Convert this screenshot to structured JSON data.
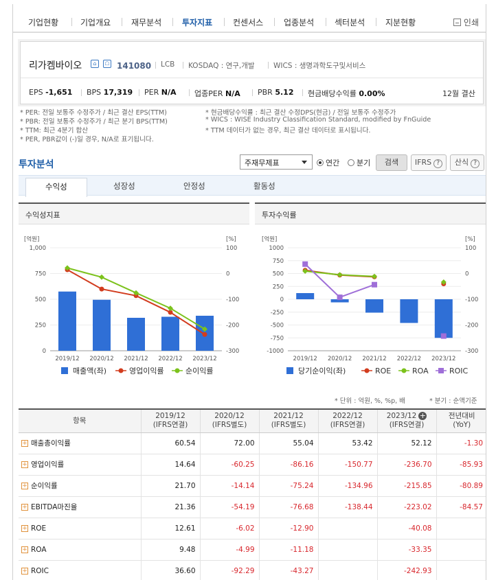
{
  "nav": {
    "tabs": [
      "기업현황",
      "기업개요",
      "재무분석",
      "투자지표",
      "컨센서스",
      "업종분석",
      "섹터분석",
      "지분현황"
    ],
    "active_index": 3,
    "print_label": "인쇄"
  },
  "company": {
    "name": "리가켐바이오",
    "code": "141080",
    "lcb": "LCB",
    "market": "KOSDAQ : 연구,개발",
    "wics": "WICS : 생명과학도구및서비스",
    "stats": {
      "eps_label": "EPS",
      "eps_value": "-1,651",
      "bps_label": "BPS",
      "bps_value": "17,319",
      "per_label": "PER",
      "per_value": "N/A",
      "iper_label": "업종PER",
      "iper_value": "N/A",
      "pbr_label": "PBR",
      "pbr_value": "5.12",
      "div_label": "현금배당수익률",
      "div_value": "0.00%",
      "settle": "12월 결산"
    }
  },
  "notes": {
    "left": [
      "* PER: 전일 보통주 수정주가 / 최근 결산 EPS(TTM)",
      "* PBR: 전일 보통주 수정주가 / 최근 분기 BPS(TTM)",
      "* TTM: 최근 4분기 합산",
      "* PER, PBR값이 (-)일 경우, N/A로 표기됩니다."
    ],
    "right": [
      "* 현금배당수익률 : 최근 결산 수정DPS(현금) / 전일 보통주 수정주가",
      "* WICS : WISE Industry Classification Standard, modified by FnGuide",
      "* TTM 데이터가 없는 경우, 최근 결산 데이터로 표시됩니다."
    ]
  },
  "analysis": {
    "title": "투자분석",
    "select_value": "주재무제표",
    "radio_annual": "연간",
    "radio_quarter": "분기",
    "search_label": "검색",
    "ifrs_label": "IFRS",
    "calc_label": "산식",
    "subtabs": [
      "수익성",
      "성장성",
      "안정성",
      "활동성"
    ],
    "active_subtab": 0
  },
  "chart_data": [
    {
      "title": "수익성지표",
      "type": "bar+line",
      "categories": [
        "2019/12",
        "2020/12",
        "2021/12",
        "2022/12",
        "2023/12"
      ],
      "y_left": {
        "unit": "[억원]",
        "ticks": [
          "0",
          "250",
          "500",
          "750",
          "1,000"
        ],
        "range": [
          0,
          1000
        ]
      },
      "y_right": {
        "unit": "[%]",
        "ticks": [
          "-300",
          "-200",
          "-100",
          "0",
          "100"
        ],
        "range": [
          -300,
          100
        ]
      },
      "series": [
        {
          "name": "매출액(좌)",
          "kind": "bar",
          "axis": "left",
          "color": "#2f6fd6",
          "values": [
            575,
            495,
            320,
            330,
            340
          ]
        },
        {
          "name": "영업이익률",
          "kind": "line",
          "axis": "right",
          "color": "#d23c1e",
          "values": [
            14.64,
            -60.25,
            -86.16,
            -150.77,
            -236.7
          ]
        },
        {
          "name": "순이익률",
          "kind": "line",
          "axis": "right",
          "color": "#7cc21c",
          "values": [
            21.7,
            -14.14,
            -75.24,
            -134.96,
            -215.85
          ]
        }
      ]
    },
    {
      "title": "투자수익률",
      "type": "bar+line",
      "categories": [
        "2019/12",
        "2020/12",
        "2021/12",
        "2022/12",
        "2023/12"
      ],
      "y_left": {
        "unit": "[억원]",
        "ticks": [
          "-1000",
          "-750",
          "-500",
          "-250",
          "0",
          "250",
          "500",
          "750",
          "1000"
        ],
        "range": [
          -1000,
          1000
        ]
      },
      "y_right": {
        "unit": "[%]",
        "ticks": [
          "-300",
          "-200",
          "-100",
          "0",
          "100"
        ],
        "range": [
          -300,
          100
        ]
      },
      "series": [
        {
          "name": "당기순이익(좌)",
          "kind": "bar",
          "axis": "left",
          "color": "#2f6fd6",
          "values": [
            120,
            -60,
            -260,
            -460,
            -750
          ]
        },
        {
          "name": "ROE",
          "kind": "line",
          "axis": "right",
          "color": "#d23c1e",
          "values": [
            12.61,
            -6.02,
            -12.9,
            null,
            -40.08
          ]
        },
        {
          "name": "ROA",
          "kind": "line",
          "axis": "right",
          "color": "#7cc21c",
          "values": [
            9.48,
            -4.99,
            -11.18,
            null,
            -33.35
          ]
        },
        {
          "name": "ROIC",
          "kind": "line",
          "axis": "right",
          "color": "#9f6fd8",
          "values": [
            36.6,
            -92.29,
            -43.27,
            null,
            -242.93
          ]
        }
      ]
    }
  ],
  "units_note": "* 단위 : 억원, %, %p, 배",
  "quarter_note": "* 분기 : 순액기준",
  "table": {
    "header_item": "항목",
    "columns": [
      {
        "year": "2019/12",
        "basis": "(IFRS연결)"
      },
      {
        "year": "2020/12",
        "basis": "(IFRS별도)"
      },
      {
        "year": "2021/12",
        "basis": "(IFRS별도)"
      },
      {
        "year": "2022/12",
        "basis": "(IFRS연결)"
      },
      {
        "year": "2023/12",
        "basis": "(IFRS연결)"
      }
    ],
    "yoy_label": "전년대비",
    "yoy_sub": "(YoY)",
    "rows": [
      {
        "label": "매출총이익률",
        "values": [
          "60.54",
          "72.00",
          "55.04",
          "53.42",
          "52.12"
        ],
        "yoy": "-1.30"
      },
      {
        "label": "영업이익률",
        "values": [
          "14.64",
          "-60.25",
          "-86.16",
          "-150.77",
          "-236.70"
        ],
        "yoy": "-85.93"
      },
      {
        "label": "순이익률",
        "values": [
          "21.70",
          "-14.14",
          "-75.24",
          "-134.96",
          "-215.85"
        ],
        "yoy": "-80.89"
      },
      {
        "label": "EBITDA마진율",
        "values": [
          "21.36",
          "-54.19",
          "-76.68",
          "-138.44",
          "-223.02"
        ],
        "yoy": "-84.57"
      },
      {
        "label": "ROE",
        "values": [
          "12.61",
          "-6.02",
          "-12.90",
          "",
          "-40.08"
        ],
        "yoy": ""
      },
      {
        "label": "ROA",
        "values": [
          "9.48",
          "-4.99",
          "-11.18",
          "",
          "-33.35"
        ],
        "yoy": ""
      },
      {
        "label": "ROIC",
        "values": [
          "36.60",
          "-92.29",
          "-43.27",
          "",
          "-242.93"
        ],
        "yoy": ""
      }
    ]
  }
}
